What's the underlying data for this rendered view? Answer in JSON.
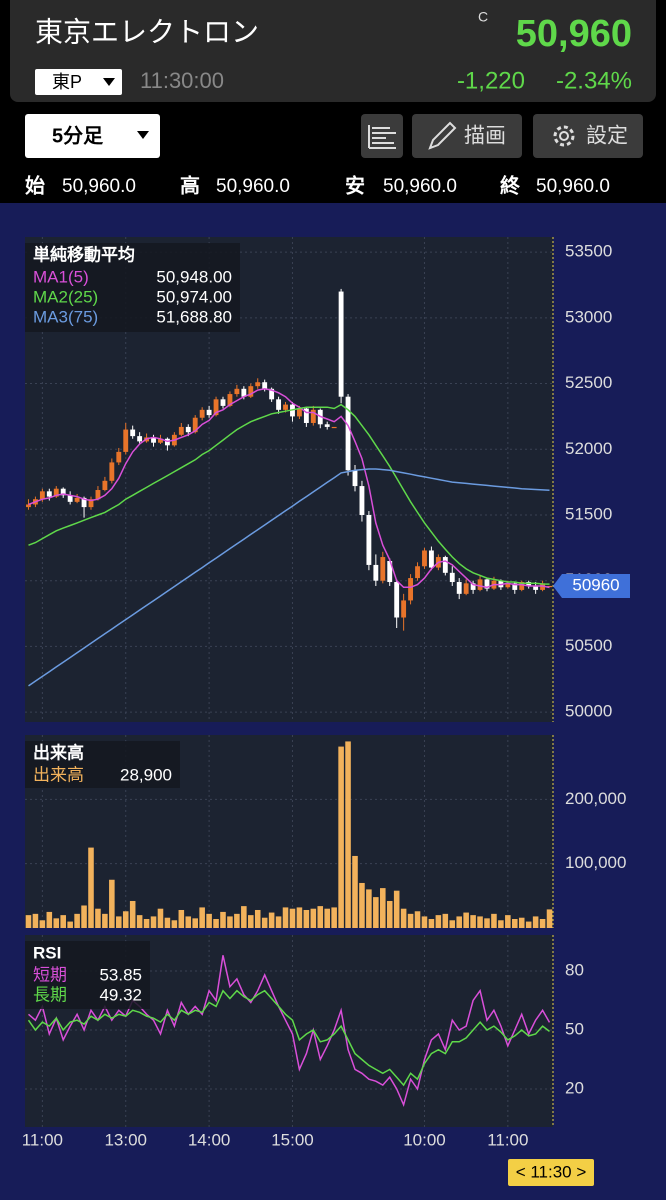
{
  "header": {
    "name": "東京エレクトロン",
    "price_flag": "C",
    "price": "50,960",
    "market": "東P",
    "time": "11:30:00",
    "change": "-1,220",
    "change_pct": "-2.34%"
  },
  "toolbar": {
    "interval": "5分足",
    "draw": "描画",
    "settings": "設定"
  },
  "ohlc_summary": [
    {
      "label": "始",
      "value": "50,960.0"
    },
    {
      "label": "高",
      "value": "50,960.0"
    },
    {
      "label": "安",
      "value": "50,960.0"
    },
    {
      "label": "終",
      "value": "50,960.0"
    }
  ],
  "time_label": "< 11:30 >",
  "chart_data": [
    {
      "type": "candlestick",
      "title": "単純移動平均",
      "up_color": "#e8742a",
      "down_color": "#ffffff",
      "grid": true,
      "categories": [
        null,
        null,
        "11:00",
        null,
        null,
        null,
        null,
        null,
        null,
        null,
        null,
        null,
        null,
        null,
        "13:00",
        null,
        null,
        null,
        null,
        null,
        null,
        null,
        null,
        null,
        null,
        null,
        "14:00",
        null,
        null,
        null,
        null,
        null,
        null,
        null,
        null,
        null,
        null,
        null,
        "15:00",
        null,
        null,
        null,
        null,
        null,
        null,
        null,
        null,
        null,
        null,
        null,
        null,
        null,
        null,
        null,
        null,
        null,
        null,
        "10:00",
        null,
        null,
        null,
        null,
        null,
        null,
        null,
        null,
        null,
        null,
        null,
        "11:00",
        null,
        null,
        null,
        null,
        null,
        null
      ],
      "open": [
        51560,
        51580,
        51620,
        51680,
        51640,
        51700,
        51650,
        51600,
        51630,
        51560,
        51620,
        51690,
        51760,
        51900,
        51980,
        52150,
        52100,
        52060,
        52090,
        52050,
        52080,
        52030,
        52110,
        52170,
        52130,
        52240,
        52300,
        52260,
        52380,
        52330,
        52420,
        52460,
        52400,
        52480,
        52510,
        52460,
        52380,
        52300,
        52340,
        52250,
        52310,
        52200,
        52300,
        52190,
        52170,
        53200,
        52400,
        51840,
        51720,
        51500,
        51120,
        51000,
        51150,
        50990,
        50720,
        50850,
        51020,
        51110,
        51230,
        51100,
        51180,
        51060,
        50990,
        50900,
        50980,
        50930,
        51010,
        50940,
        51000,
        50950,
        50980,
        50930,
        50990,
        50960,
        50930,
        50960
      ],
      "high": [
        51620,
        51640,
        51700,
        51700,
        51720,
        51710,
        51680,
        51660,
        51640,
        51640,
        51720,
        51790,
        51930,
        52010,
        52200,
        52180,
        52130,
        52120,
        52110,
        52110,
        52090,
        52130,
        52200,
        52190,
        52260,
        52320,
        52330,
        52400,
        52400,
        52440,
        52490,
        52480,
        52500,
        52540,
        52530,
        52470,
        52400,
        52360,
        52360,
        52330,
        52320,
        52330,
        52310,
        52210,
        52170,
        53220,
        52420,
        51880,
        51760,
        51530,
        51200,
        51220,
        51170,
        51010,
        50900,
        51050,
        51140,
        51250,
        51260,
        51200,
        51190,
        51110,
        51020,
        51010,
        51000,
        51040,
        51020,
        51030,
        51010,
        51000,
        50990,
        51000,
        51000,
        50990,
        51000,
        50960
      ],
      "low": [
        51540,
        51560,
        51600,
        51610,
        51630,
        51630,
        51580,
        51590,
        51480,
        51540,
        51610,
        51680,
        51740,
        51880,
        51960,
        52080,
        52040,
        52050,
        52020,
        52040,
        51990,
        52020,
        52100,
        52100,
        52120,
        52220,
        52240,
        52250,
        52310,
        52320,
        52400,
        52380,
        52390,
        52460,
        52440,
        52360,
        52270,
        52280,
        52210,
        52230,
        52170,
        52180,
        52160,
        52150,
        52170,
        52350,
        51800,
        51680,
        51450,
        51080,
        50960,
        50980,
        50960,
        50640,
        50620,
        50820,
        51000,
        51090,
        51080,
        51080,
        51040,
        50960,
        50860,
        50890,
        50900,
        50920,
        50920,
        50930,
        50930,
        50940,
        50900,
        50920,
        50940,
        50900,
        50920,
        50960
      ],
      "close": [
        51580,
        51620,
        51680,
        51640,
        51700,
        51650,
        51600,
        51630,
        51560,
        51620,
        51690,
        51760,
        51900,
        51980,
        52150,
        52100,
        52060,
        52090,
        52050,
        52080,
        52030,
        52110,
        52170,
        52130,
        52240,
        52300,
        52260,
        52380,
        52330,
        52420,
        52460,
        52400,
        52480,
        52510,
        52460,
        52380,
        52300,
        52340,
        52250,
        52310,
        52200,
        52300,
        52190,
        52170,
        52170,
        52400,
        51840,
        51720,
        51500,
        51120,
        51000,
        51180,
        50990,
        50720,
        50850,
        51020,
        51110,
        51230,
        51100,
        51180,
        51060,
        50990,
        50900,
        50980,
        50930,
        51010,
        50940,
        51000,
        50950,
        50980,
        50930,
        50990,
        50960,
        50930,
        50980,
        50960
      ],
      "series": [
        {
          "name": "MA1(5)",
          "color": "#d94fd9",
          "legend_value": "50,948.00",
          "values": [
            51580,
            51600,
            51620,
            51630,
            51650,
            51660,
            51650,
            51640,
            51620,
            51610,
            51620,
            51650,
            51700,
            51780,
            51890,
            51980,
            52040,
            52080,
            52090,
            52080,
            52060,
            52070,
            52090,
            52110,
            52140,
            52190,
            52220,
            52280,
            52300,
            52340,
            52370,
            52400,
            52420,
            52450,
            52460,
            52450,
            52430,
            52400,
            52350,
            52320,
            52280,
            52280,
            52250,
            52230,
            52210,
            52250,
            52180,
            52060,
            51930,
            51720,
            51440,
            51270,
            51160,
            51000,
            50950,
            50950,
            50970,
            51020,
            51090,
            51140,
            51150,
            51120,
            51070,
            51020,
            50970,
            50960,
            50950,
            50970,
            50970,
            50980,
            50970,
            50970,
            50960,
            50960,
            50960,
            50948
          ]
        },
        {
          "name": "MA2(25)",
          "color": "#5fd84a",
          "legend_value": "50,974.00",
          "values": [
            51270,
            51290,
            51320,
            51350,
            51380,
            51400,
            51420,
            51440,
            51460,
            51480,
            51500,
            51520,
            51550,
            51580,
            51620,
            51650,
            51680,
            51710,
            51740,
            51770,
            51800,
            51830,
            51860,
            51890,
            51920,
            51960,
            51990,
            52030,
            52070,
            52110,
            52150,
            52180,
            52210,
            52230,
            52250,
            52270,
            52280,
            52290,
            52300,
            52310,
            52320,
            52320,
            52320,
            52320,
            52310,
            52340,
            52300,
            52250,
            52180,
            52110,
            52030,
            51950,
            51870,
            51780,
            51690,
            51600,
            51520,
            51440,
            51370,
            51300,
            51240,
            51180,
            51130,
            51090,
            51060,
            51040,
            51020,
            51010,
            51000,
            50990,
            50990,
            50980,
            50980,
            50980,
            50975,
            50974
          ]
        },
        {
          "name": "MA3(75)",
          "color": "#6b9be0",
          "legend_value": "51,688.80",
          "values": [
            50200,
            50236,
            50272,
            50308,
            50344,
            50380,
            50416,
            50452,
            50488,
            50524,
            50560,
            50596,
            50632,
            50668,
            50704,
            50740,
            50776,
            50812,
            50848,
            50884,
            50920,
            50956,
            50992,
            51028,
            51064,
            51100,
            51136,
            51172,
            51208,
            51244,
            51280,
            51316,
            51352,
            51388,
            51424,
            51460,
            51496,
            51532,
            51568,
            51604,
            51640,
            51676,
            51712,
            51748,
            51784,
            51820,
            51830,
            51840,
            51845,
            51850,
            51850,
            51845,
            51840,
            51830,
            51820,
            51810,
            51800,
            51790,
            51780,
            51770,
            51760,
            51750,
            51745,
            51740,
            51735,
            51730,
            51725,
            51720,
            51715,
            51710,
            51705,
            51700,
            51697,
            51694,
            51691,
            51688.8
          ]
        }
      ],
      "last_price": 50960,
      "ylim": [
        49925,
        53615
      ],
      "yticks": [
        50000,
        50500,
        51000,
        51500,
        52000,
        52500,
        53000,
        53500
      ]
    },
    {
      "type": "bar",
      "title": "出来高",
      "grid": true,
      "series": [
        {
          "name": "出来高",
          "color": "#f2b25c",
          "legend_value": "28,900",
          "values": [
            20000,
            22000,
            12000,
            25000,
            15000,
            20000,
            10000,
            22000,
            35000,
            125000,
            30000,
            22000,
            75000,
            18000,
            26000,
            42000,
            20000,
            14000,
            18000,
            30000,
            16000,
            12000,
            28000,
            18000,
            15000,
            32000,
            22000,
            14000,
            25000,
            18000,
            22000,
            34000,
            20000,
            28000,
            16000,
            24000,
            18000,
            32000,
            30000,
            32000,
            28000,
            30000,
            34000,
            30000,
            32000,
            282000,
            290000,
            112000,
            70000,
            60000,
            48000,
            62000,
            42000,
            58000,
            30000,
            22000,
            26000,
            18000,
            14000,
            20000,
            22000,
            12000,
            18000,
            24000,
            20000,
            18000,
            15000,
            22000,
            12000,
            20000,
            14000,
            16000,
            10000,
            18000,
            14000,
            28900
          ]
        }
      ],
      "ylim": [
        0,
        300000
      ],
      "yticks": [
        {
          "value": 100000,
          "label": "100,000"
        },
        {
          "value": 200000,
          "label": "200,000"
        }
      ]
    },
    {
      "type": "line",
      "title": "RSI",
      "grid": true,
      "series": [
        {
          "name": "短期",
          "color": "#d94fd9",
          "legend_value": "53.85",
          "values": [
            58,
            55,
            62,
            48,
            56,
            45,
            52,
            58,
            50,
            60,
            55,
            62,
            55,
            60,
            57,
            65,
            62,
            58,
            55,
            48,
            60,
            52,
            64,
            58,
            62,
            58,
            70,
            65,
            88,
            72,
            76,
            68,
            64,
            70,
            78,
            70,
            62,
            55,
            48,
            30,
            38,
            50,
            35,
            42,
            50,
            60,
            40,
            30,
            28,
            25,
            24,
            22,
            26,
            20,
            12,
            25,
            20,
            35,
            45,
            48,
            40,
            55,
            50,
            52,
            65,
            70,
            55,
            60,
            52,
            42,
            50,
            58,
            48,
            55,
            60,
            53.85
          ]
        },
        {
          "name": "長期",
          "color": "#5fd84a",
          "legend_value": "49.32",
          "values": [
            55,
            50,
            54,
            52,
            56,
            50,
            54,
            55,
            53,
            57,
            55,
            58,
            56,
            58,
            57,
            60,
            59,
            57,
            56,
            54,
            58,
            55,
            60,
            58,
            60,
            59,
            64,
            62,
            70,
            66,
            70,
            67,
            65,
            68,
            70,
            66,
            62,
            58,
            55,
            45,
            48,
            50,
            44,
            45,
            48,
            52,
            45,
            38,
            35,
            32,
            30,
            28,
            30,
            26,
            22,
            28,
            25,
            33,
            38,
            40,
            38,
            44,
            44,
            46,
            50,
            54,
            50,
            52,
            49,
            45,
            47,
            50,
            47,
            48,
            52,
            49.32
          ]
        }
      ],
      "ylim": [
        0.7,
        98.3
      ],
      "yticks": [
        20,
        50,
        80
      ]
    }
  ]
}
